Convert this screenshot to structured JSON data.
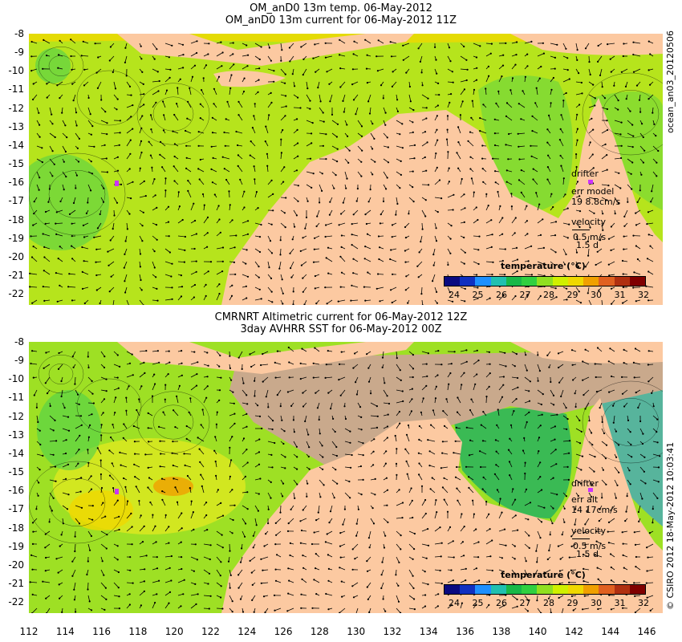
{
  "top_panel": {
    "title_line1": "OM_anD0 13m temp. 06-May-2012",
    "title_line2": "OM_anD0 13m current for 06-May-2012 11Z",
    "legend": {
      "drifter": "drifter",
      "err": "err model",
      "err_value": "19 8.8cm/s",
      "velocity": "velocity",
      "speed": "0.5 m/s",
      "duration": "1.5 d"
    },
    "colorbar_title": "temperature (°C)",
    "side_label": "ocean_an03_20120506"
  },
  "bottom_panel": {
    "title_line1": "CMRNRT Altimetric current for 06-May-2012 12Z",
    "title_line2": "3day AVHRR SST for 06-May-2012 00Z",
    "legend": {
      "drifter": "drifter",
      "err": "err alt",
      "err_value": "14 17cm/s",
      "velocity": "velocity",
      "speed": "0.5 m/s",
      "duration": "1.5 d"
    },
    "colorbar_title": "temperature (°C)",
    "side_label": "© CSIRO 2012   18-May-2012 10:03:41"
  },
  "y_ticks": [
    "-8",
    "-9",
    "-10",
    "-11",
    "-12",
    "-13",
    "-14",
    "-15",
    "-16",
    "-17",
    "-18",
    "-19",
    "-20",
    "-21",
    "-22"
  ],
  "x_ticks": [
    "112",
    "114",
    "116",
    "118",
    "120",
    "122",
    "124",
    "126",
    "128",
    "130",
    "132",
    "134",
    "136",
    "138",
    "140",
    "142",
    "144",
    "146"
  ],
  "colorbar_ticks": [
    "24",
    "25",
    "26",
    "27",
    "28",
    "29",
    "30",
    "31",
    "32"
  ],
  "colorbar_colors": [
    "#0a0a80",
    "#1030c0",
    "#1e90ff",
    "#20c0b0",
    "#18b848",
    "#30d040",
    "#90e020",
    "#d0f000",
    "#f0d800",
    "#f0a000",
    "#e06020",
    "#b03010",
    "#800000"
  ],
  "colors": {
    "land": "#fcc9a1",
    "ocean_model": "#b6e41c",
    "ocean_warm": "#e8ea20",
    "ocean_cool": "#4cd04c",
    "cloud_mask": "#c9a98c",
    "drifter": "#cc33ff",
    "arrow": "#000000"
  }
}
